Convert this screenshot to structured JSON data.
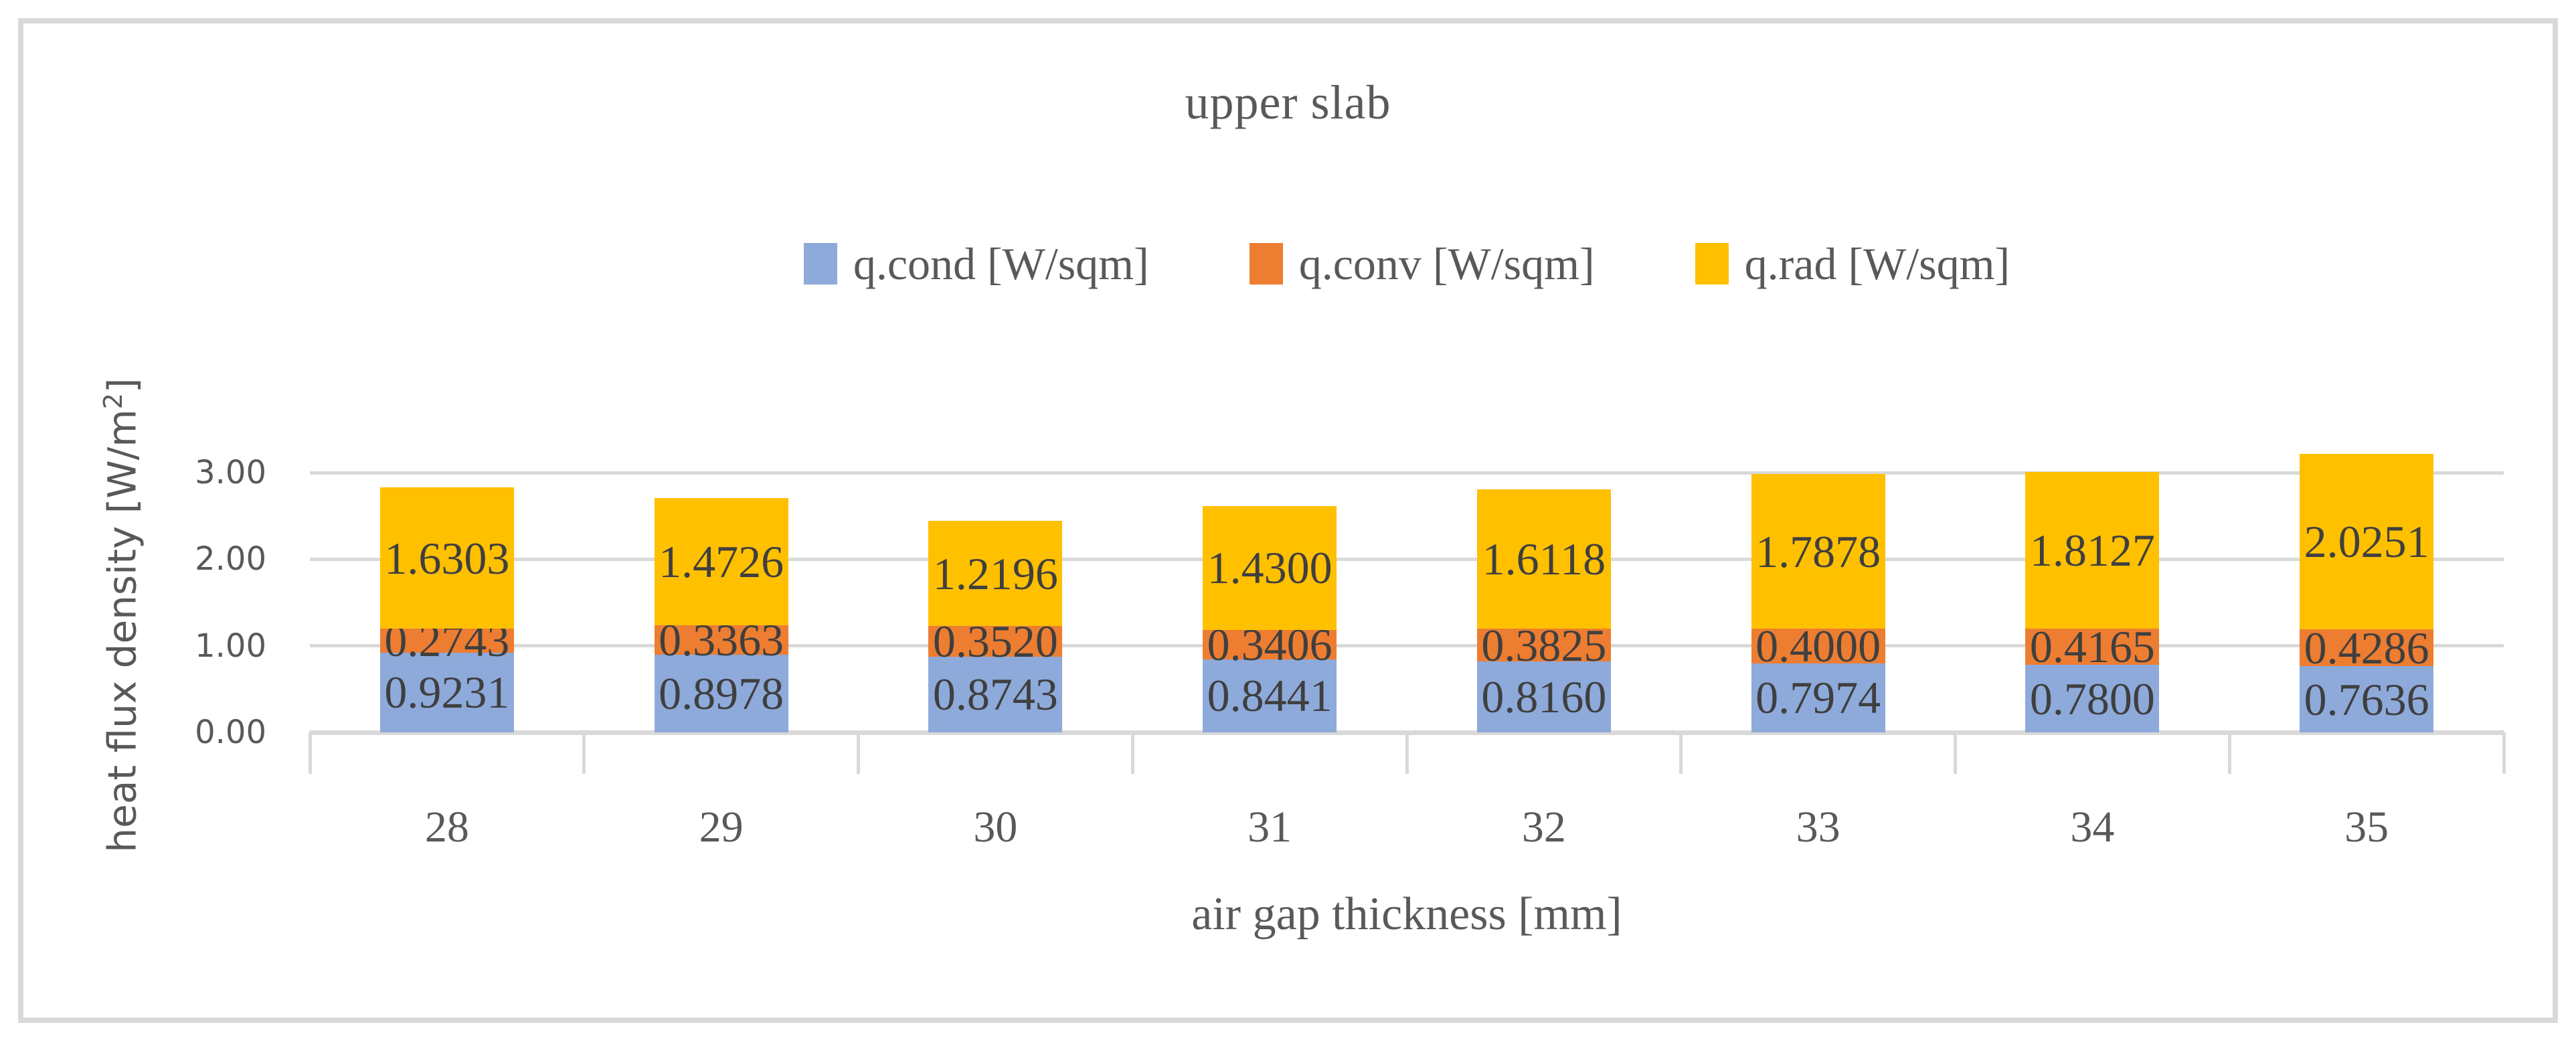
{
  "chart": {
    "title": "upper slab",
    "x_axis": {
      "title": "air gap thickness [mm]"
    },
    "y_axis": {
      "title_prefix": "heat flux density [W/m",
      "title_sup": "2",
      "title_suffix": "]",
      "ticks": [
        "0.00",
        "1.00",
        "2.00",
        "3.00"
      ]
    },
    "colors": {
      "grid": "#D9D9D9",
      "axis_text": "#595959",
      "data_label_text": "#3F3F3F"
    }
  },
  "chart_data": {
    "type": "bar",
    "stacked": true,
    "title": "upper slab",
    "xlabel": "air gap thickness [mm]",
    "ylabel": "heat flux density [W/m²]",
    "categories": [
      "28",
      "29",
      "30",
      "31",
      "32",
      "33",
      "34",
      "35"
    ],
    "ylim": [
      0,
      3
    ],
    "ytick_values": [
      0,
      1,
      2,
      3
    ],
    "gridline_values": [
      1,
      2,
      3
    ],
    "grid": true,
    "legend_position": "top",
    "series": [
      {
        "name": "q.cond [W/sqm]",
        "color": "#8EAADB",
        "values": [
          0.9231,
          0.8978,
          0.8743,
          0.8441,
          0.816,
          0.7974,
          0.78,
          0.7636
        ],
        "value_labels": [
          "0.9231",
          "0.8978",
          "0.8743",
          "0.8441",
          "0.8160",
          "0.7974",
          "0.7800",
          "0.7636"
        ]
      },
      {
        "name": "q.conv [W/sqm]",
        "color": "#ED7D31",
        "values": [
          0.2743,
          0.3363,
          0.352,
          0.3406,
          0.3825,
          0.4,
          0.4165,
          0.4286
        ],
        "value_labels": [
          "0.2743",
          "0.3363",
          "0.3520",
          "0.3406",
          "0.3825",
          "0.4000",
          "0.4165",
          "0.4286"
        ]
      },
      {
        "name": "q.rad [W/sqm]",
        "color": "#FFC000",
        "values": [
          1.6303,
          1.4726,
          1.2196,
          1.43,
          1.6118,
          1.7878,
          1.8127,
          2.0251
        ],
        "value_labels": [
          "1.6303",
          "1.4726",
          "1.2196",
          "1.4300",
          "1.6118",
          "1.7878",
          "1.8127",
          "2.0251"
        ]
      }
    ]
  }
}
